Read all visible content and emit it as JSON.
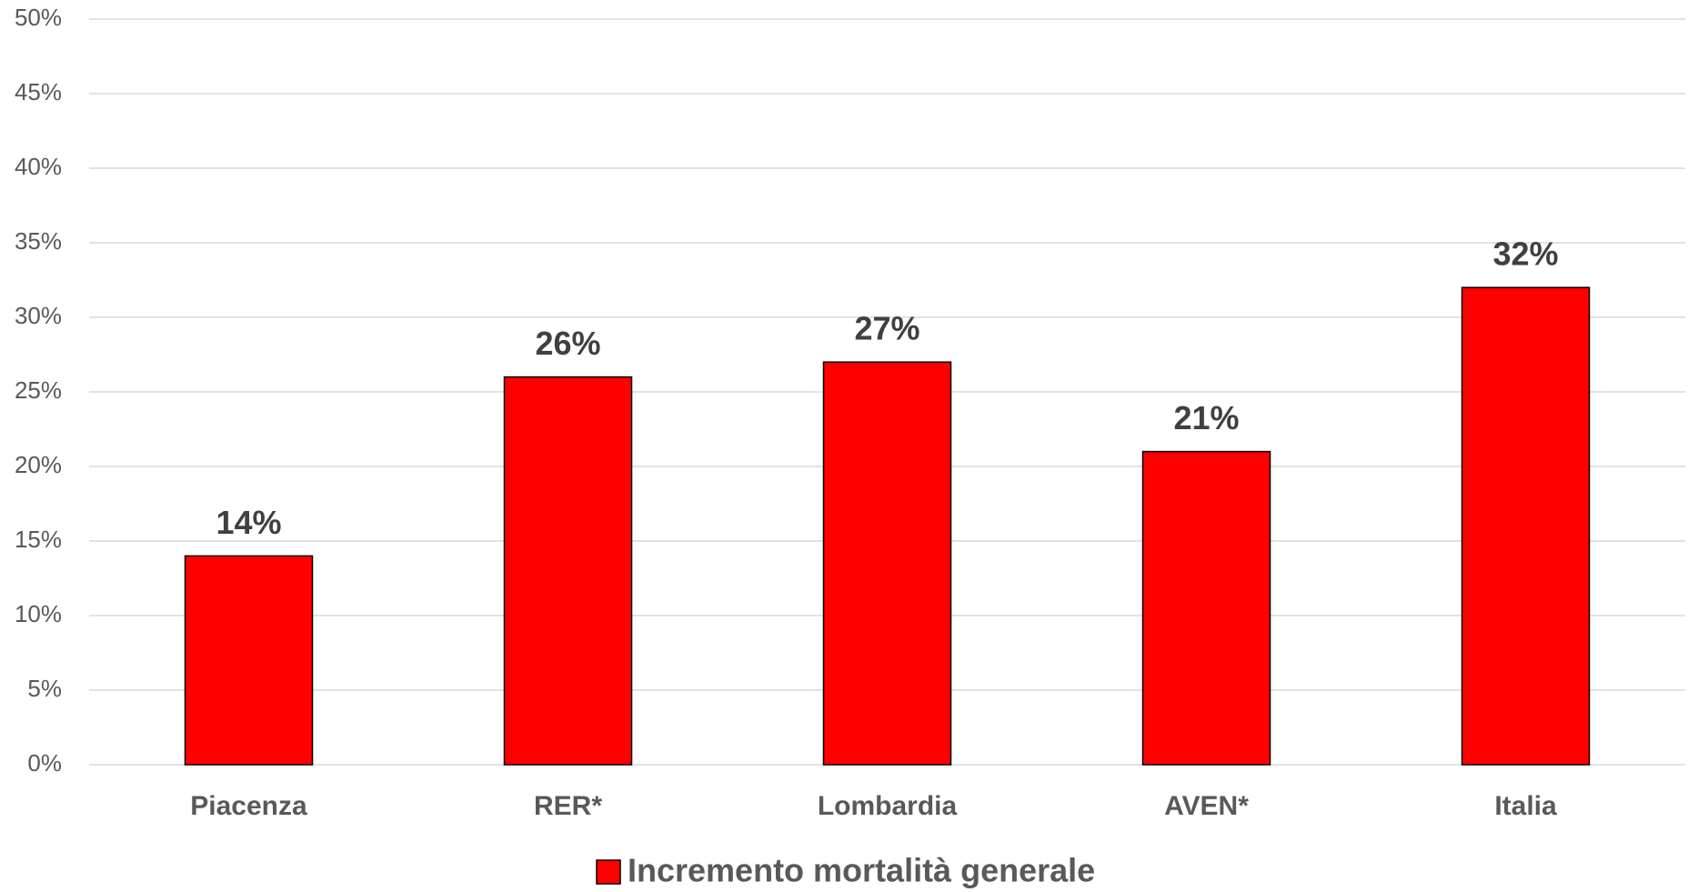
{
  "chart_data": {
    "type": "bar",
    "categories": [
      "Piacenza",
      "RER*",
      "Lombardia",
      "AVEN*",
      "Italia"
    ],
    "series": [
      {
        "name": "Incremento mortalità generale",
        "color": "#ff0000",
        "values": [
          14,
          26,
          27,
          21,
          32
        ],
        "value_labels": [
          "14%",
          "26%",
          "27%",
          "21%",
          "32%"
        ]
      }
    ],
    "ylim": [
      0,
      50
    ],
    "yticks": [
      {
        "value": 0,
        "label": "0%"
      },
      {
        "value": 5,
        "label": "5%"
      },
      {
        "value": 10,
        "label": "10%"
      },
      {
        "value": 15,
        "label": "15%"
      },
      {
        "value": 20,
        "label": "20%"
      },
      {
        "value": 25,
        "label": "25%"
      },
      {
        "value": 30,
        "label": "30%"
      },
      {
        "value": 35,
        "label": "35%"
      },
      {
        "value": 40,
        "label": "40%"
      },
      {
        "value": 45,
        "label": "45%"
      },
      {
        "value": 50,
        "label": "50%"
      }
    ],
    "grid": true,
    "legend": "bottom"
  }
}
